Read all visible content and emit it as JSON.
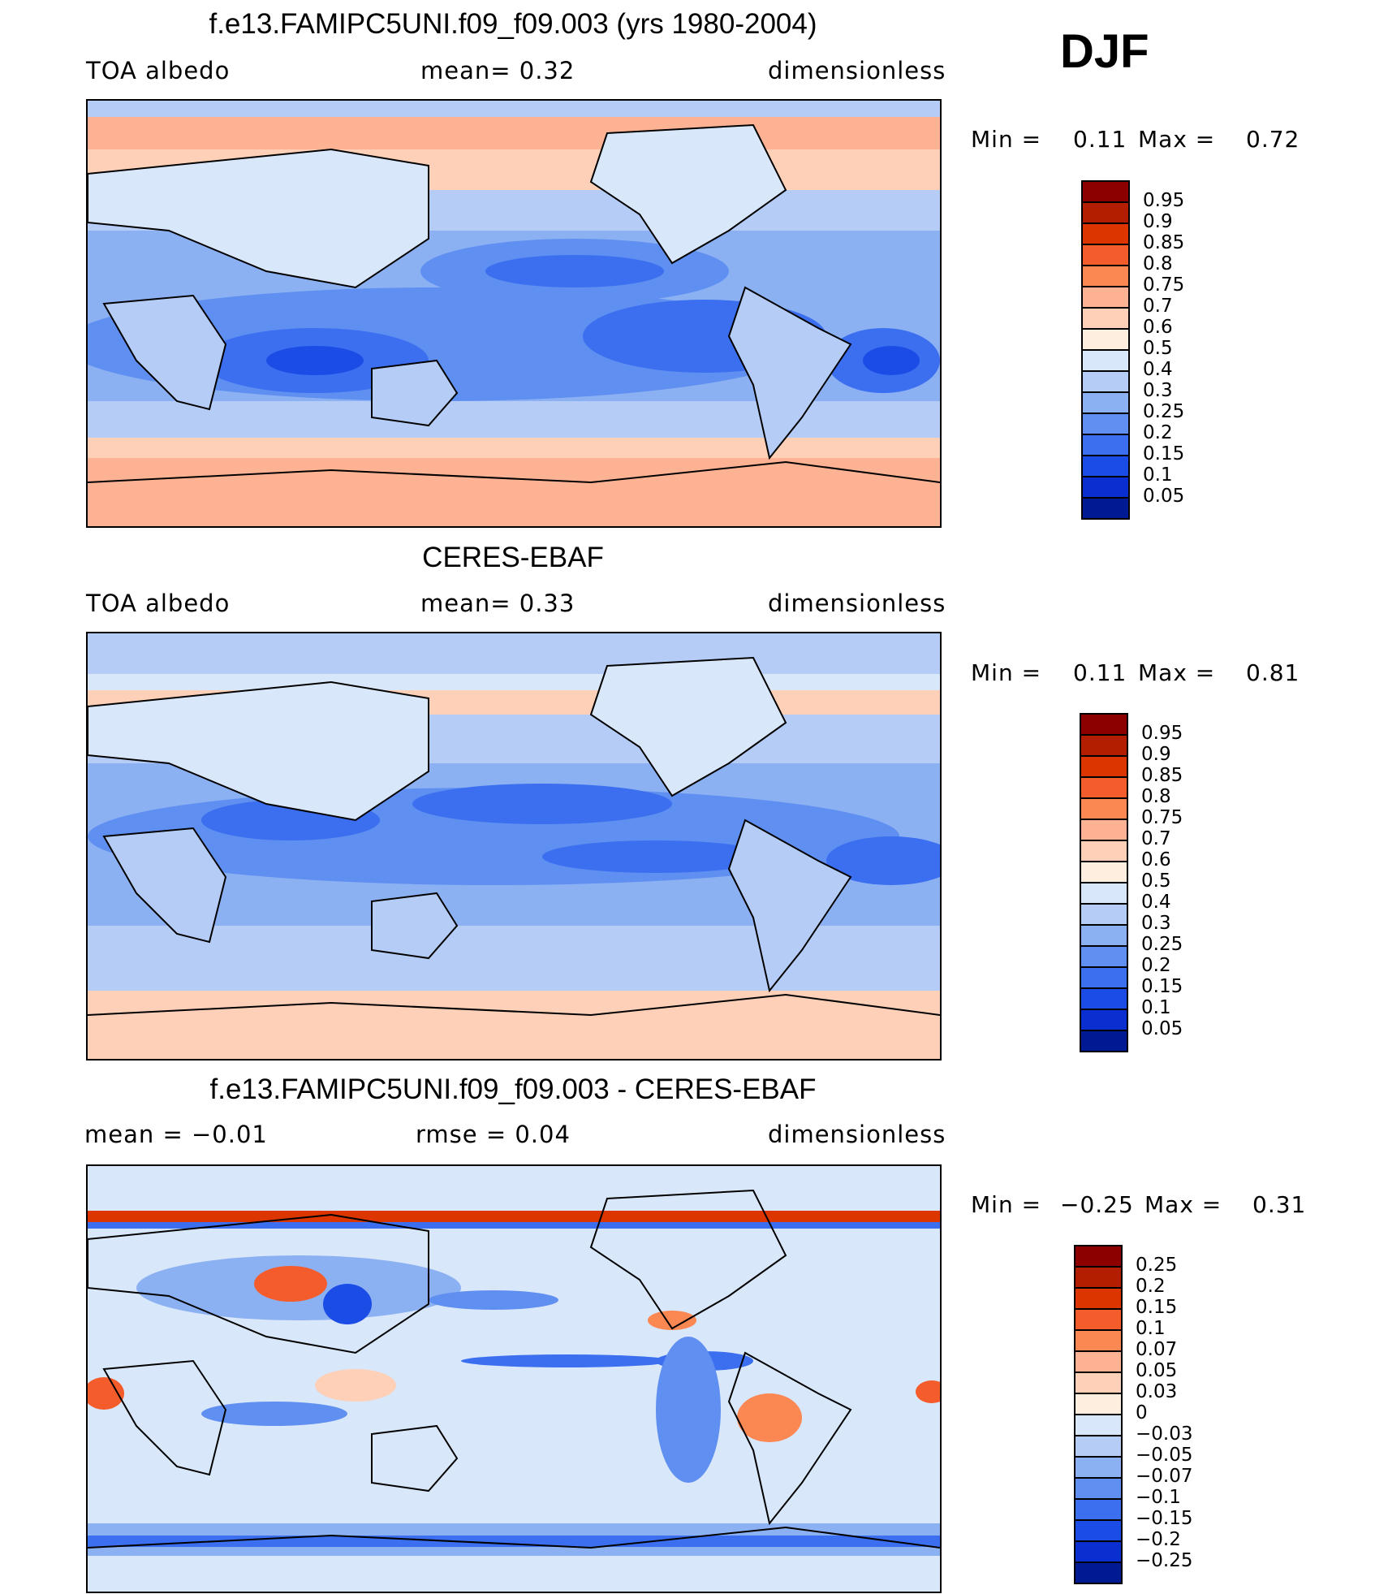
{
  "season": "DJF",
  "panels": [
    {
      "title": "f.e13.FAMIPC5UNI.f09_f09.003 (yrs 1980-2004)",
      "left_label": "TOA  albedo",
      "center_label": "mean=     0.32",
      "right_label": "dimensionless",
      "min_label": "Min  =",
      "min_value": "0.11",
      "max_label": "Max  =",
      "max_value": "0.72",
      "colorbar": {
        "labels": [
          "0.95",
          "0.9",
          "0.85",
          "0.8",
          "0.75",
          "0.7",
          "0.6",
          "0.5",
          "0.4",
          "0.3",
          "0.25",
          "0.2",
          "0.15",
          "0.1",
          "0.05"
        ],
        "colors": [
          "#8c0000",
          "#b31e00",
          "#dc3500",
          "#f45c2c",
          "#fb8753",
          "#fdb393",
          "#fdd0b7",
          "#fdeee0",
          "#d9e7fa",
          "#b5cdf6",
          "#8cb1f3",
          "#5f8ff0",
          "#3b6ff0",
          "#1b4de6",
          "#0a2fd0",
          "#001a94"
        ]
      }
    },
    {
      "title": "CERES-EBAF",
      "left_label": "TOA  albedo",
      "center_label": "mean=     0.33",
      "right_label": "dimensionless",
      "min_label": "Min  =",
      "min_value": "0.11",
      "max_label": "Max  =",
      "max_value": "0.81",
      "colorbar": {
        "labels": [
          "0.95",
          "0.9",
          "0.85",
          "0.8",
          "0.75",
          "0.7",
          "0.6",
          "0.5",
          "0.4",
          "0.3",
          "0.25",
          "0.2",
          "0.15",
          "0.1",
          "0.05"
        ],
        "colors": [
          "#8c0000",
          "#b31e00",
          "#dc3500",
          "#f45c2c",
          "#fb8753",
          "#fdb393",
          "#fdd0b7",
          "#fdeee0",
          "#d9e7fa",
          "#b5cdf6",
          "#8cb1f3",
          "#5f8ff0",
          "#3b6ff0",
          "#1b4de6",
          "#0a2fd0",
          "#001a94"
        ]
      }
    },
    {
      "title": "f.e13.FAMIPC5UNI.f09_f09.003 - CERES-EBAF",
      "left_label": "mean  =    −0.01",
      "center_label": "rmse  =     0.04",
      "right_label": "dimensionless",
      "min_label": "Min  =",
      "min_value": "−0.25",
      "max_label": "Max  =",
      "max_value": "0.31",
      "colorbar": {
        "labels": [
          "0.25",
          "0.2",
          "0.15",
          "0.1",
          "0.07",
          "0.05",
          "0.03",
          "0",
          "−0.03",
          "−0.05",
          "−0.07",
          "−0.1",
          "−0.15",
          "−0.2",
          "−0.25"
        ],
        "colors": [
          "#8c0000",
          "#b31e00",
          "#dc3500",
          "#f45c2c",
          "#fb8753",
          "#fdb393",
          "#fdd0b7",
          "#fdeee0",
          "#d9e7fa",
          "#b5cdf6",
          "#8cb1f3",
          "#5f8ff0",
          "#3b6ff0",
          "#1b4de6",
          "#0a2fd0",
          "#001a94"
        ]
      }
    }
  ]
}
